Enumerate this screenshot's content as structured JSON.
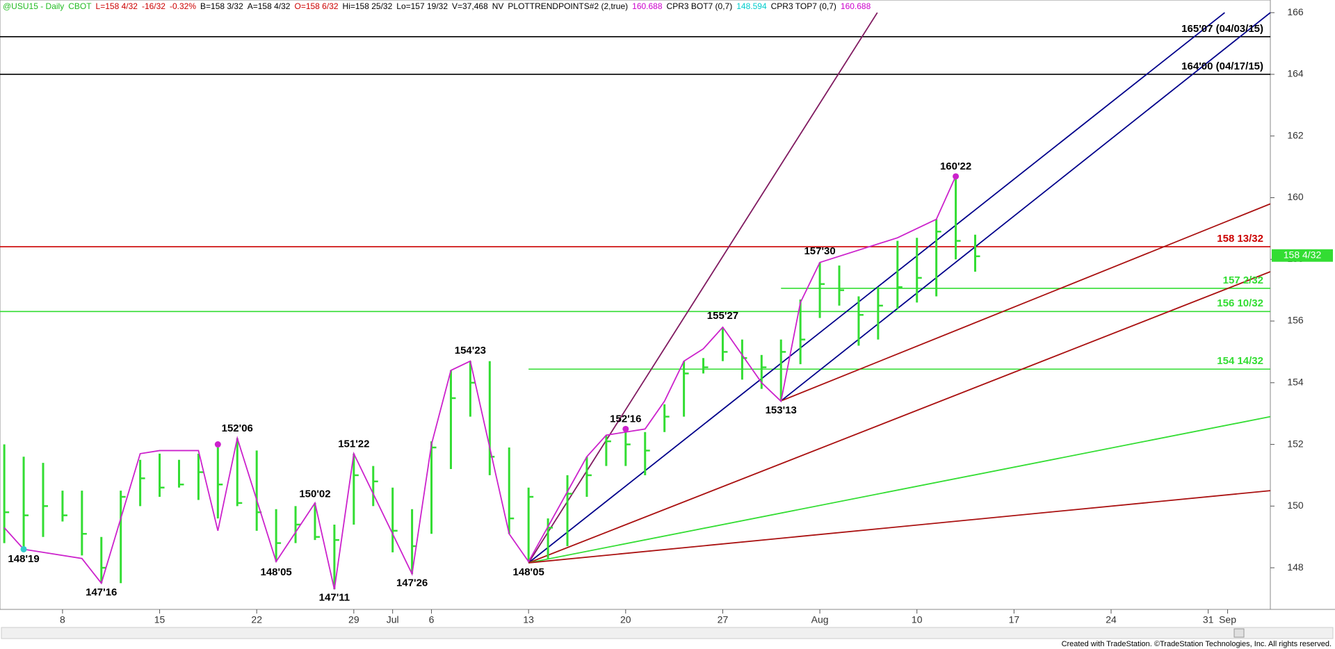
{
  "chart_data": {
    "type": "hlc_bar",
    "title_segments": [
      {
        "text": "@USU15 - Daily",
        "color": "#22bb22"
      },
      {
        "text": "CBOT",
        "color": "#22bb22"
      },
      {
        "text": "L=158 4/32",
        "color": "#cc0000"
      },
      {
        "text": "-16/32",
        "color": "#cc0000"
      },
      {
        "text": "-0.32%",
        "color": "#cc0000"
      },
      {
        "text": "B=158 3/32",
        "color": "#000000"
      },
      {
        "text": "A=158 4/32",
        "color": "#000000"
      },
      {
        "text": "O=158 6/32",
        "color": "#cc0000"
      },
      {
        "text": "Hi=158 25/32",
        "color": "#000000"
      },
      {
        "text": "Lo=157 19/32",
        "color": "#000000"
      },
      {
        "text": "V=37,468",
        "color": "#000000"
      },
      {
        "text": "NV",
        "color": "#000000"
      },
      {
        "text": "PLOTTRENDPOINTS#2 (2,true)",
        "color": "#000000"
      },
      {
        "text": "160.688",
        "color": "#cc00cc"
      },
      {
        "text": "CPR3 BOT7 (0,7)",
        "color": "#000000"
      },
      {
        "text": "148.594",
        "color": "#00cccc"
      },
      {
        "text": "CPR3 TOP7 (0,7)",
        "color": "#000000"
      },
      {
        "text": "160.688",
        "color": "#cc00cc"
      }
    ],
    "x": [
      0,
      1,
      2,
      3,
      4,
      5,
      6,
      7,
      8,
      9,
      10,
      11,
      12,
      13,
      14,
      15,
      16,
      17,
      18,
      19,
      20,
      21,
      22,
      23,
      24,
      25,
      26,
      27,
      28,
      29,
      30,
      31,
      32,
      33,
      34,
      35,
      36,
      37,
      38,
      39,
      40,
      41,
      42,
      43,
      44,
      45,
      46,
      47,
      48,
      49,
      50
    ],
    "high": [
      152.0,
      151.6,
      151.4,
      150.5,
      150.5,
      149.0,
      150.5,
      151.5,
      151.7,
      151.5,
      151.7,
      151.9,
      152.2,
      151.8,
      149.9,
      150.0,
      150.1,
      149.4,
      151.7,
      151.3,
      150.6,
      149.9,
      152.1,
      154.4,
      154.7,
      154.7,
      151.9,
      150.6,
      149.6,
      151.0,
      151.6,
      152.3,
      152.5,
      152.4,
      153.3,
      154.7,
      154.8,
      155.8,
      155.4,
      154.9,
      155.4,
      156.7,
      157.9,
      157.8,
      156.8,
      157.1,
      158.6,
      158.7,
      159.3,
      160.7,
      158.8
    ],
    "low": [
      148.8,
      148.6,
      149.0,
      149.5,
      148.4,
      147.5,
      147.5,
      150.0,
      150.3,
      150.6,
      150.2,
      149.6,
      150.0,
      149.2,
      148.2,
      148.8,
      148.9,
      147.3,
      149.4,
      150.0,
      148.5,
      147.8,
      149.1,
      151.2,
      152.9,
      151.0,
      149.1,
      148.2,
      148.3,
      148.7,
      150.3,
      151.3,
      151.3,
      151.0,
      152.4,
      152.9,
      154.3,
      154.7,
      154.1,
      153.8,
      153.4,
      154.6,
      156.1,
      156.5,
      155.2,
      155.4,
      156.4,
      156.6,
      156.8,
      158.0,
      157.6
    ],
    "close": [
      149.8,
      149.7,
      150.0,
      149.7,
      149.1,
      148.0,
      150.3,
      150.9,
      150.6,
      150.7,
      151.1,
      150.7,
      150.1,
      149.8,
      148.8,
      149.4,
      149.0,
      148.9,
      151.0,
      150.8,
      149.2,
      148.7,
      151.9,
      153.5,
      154.0,
      151.6,
      149.6,
      150.3,
      149.3,
      150.4,
      151.0,
      152.1,
      152.0,
      151.8,
      152.9,
      154.3,
      154.5,
      155.0,
      154.8,
      154.5,
      155.0,
      155.4,
      157.2,
      157.0,
      156.2,
      156.5,
      157.1,
      157.4,
      158.9,
      158.6,
      158.1
    ],
    "color": "#33dd33",
    "swing_line": {
      "color": "#cc22cc",
      "x": [
        0,
        1,
        4,
        5,
        7,
        8,
        10,
        11,
        12,
        14,
        16,
        17,
        18,
        21,
        22,
        23,
        24,
        26,
        27,
        30,
        31,
        33,
        34,
        35,
        36,
        37,
        39,
        40,
        41,
        42,
        46,
        48,
        49
      ],
      "y": [
        149.3,
        148.6,
        148.3,
        147.5,
        151.7,
        151.8,
        151.8,
        149.2,
        152.2,
        148.2,
        150.1,
        147.3,
        151.7,
        147.8,
        152.0,
        154.4,
        154.7,
        149.1,
        148.2,
        151.6,
        152.3,
        152.5,
        153.4,
        154.7,
        155.1,
        155.8,
        154.0,
        153.4,
        156.6,
        157.9,
        158.7,
        159.3,
        160.7
      ]
    },
    "swing_labels": [
      {
        "text": "148'19",
        "x": 1,
        "y": 148.59
      },
      {
        "text": "147'16",
        "x": 5,
        "y": 147.5
      },
      {
        "text": "152'06",
        "x": 12,
        "y": 152.19
      },
      {
        "text": "148'05",
        "x": 14,
        "y": 148.16
      },
      {
        "text": "150'02",
        "x": 16,
        "y": 150.06
      },
      {
        "text": "147'11",
        "x": 17,
        "y": 147.34
      },
      {
        "text": "151'22",
        "x": 18,
        "y": 151.69
      },
      {
        "text": "147'26",
        "x": 21,
        "y": 147.81
      },
      {
        "text": "154'23",
        "x": 24,
        "y": 154.72
      },
      {
        "text": "148'05",
        "x": 27,
        "y": 148.16
      },
      {
        "text": "152'16",
        "x": 32,
        "y": 152.5
      },
      {
        "text": "155'27",
        "x": 37,
        "y": 155.84
      },
      {
        "text": "153'13",
        "x": 40,
        "y": 153.41
      },
      {
        "text": "157'30",
        "x": 42,
        "y": 157.94
      },
      {
        "text": "160'22",
        "x": 49,
        "y": 160.69
      }
    ],
    "dots": [
      {
        "x": 1,
        "y": 148.6,
        "color": "#33cccc"
      },
      {
        "x": 11,
        "y": 152.0,
        "color": "#cc22cc"
      },
      {
        "x": 32,
        "y": 152.5,
        "color": "#cc22cc"
      },
      {
        "x": 49,
        "y": 160.69,
        "color": "#cc22cc"
      }
    ],
    "levels": [
      {
        "value": 165.22,
        "label": "165'07 (04/03/15)",
        "color": "#000000",
        "from": -0.22
      },
      {
        "value": 164.0,
        "label": "164'00 (04/17/15)",
        "color": "#000000",
        "from": -0.22
      },
      {
        "value": 158.41,
        "label": "158 13/32",
        "color": "#cc0000",
        "from": -0.22
      },
      {
        "value": 157.06,
        "label": "157 2/32",
        "color": "#33dd33",
        "from": 40
      },
      {
        "value": 156.31,
        "label": "156 10/32",
        "color": "#33dd33",
        "from": -0.22
      },
      {
        "value": 154.44,
        "label": "154 14/32",
        "color": "#33dd33",
        "from": 27
      }
    ],
    "trendlines": [
      {
        "color": "#801a60",
        "x": [
          27,
          44.96
        ],
        "y": [
          148.16,
          166
        ]
      },
      {
        "color": "#00008b",
        "x": [
          27,
          62.85
        ],
        "y": [
          148.16,
          166
        ]
      },
      {
        "color": "#00008b",
        "x": [
          40,
          65.2
        ],
        "y": [
          153.41,
          166
        ]
      },
      {
        "color": "#aa1111",
        "x": [
          40,
          65.2
        ],
        "y": [
          153.41,
          159.8
        ]
      },
      {
        "color": "#aa1111",
        "x": [
          27,
          65.2
        ],
        "y": [
          148.16,
          157.6
        ]
      },
      {
        "color": "#33dd33",
        "x": [
          27,
          65.2
        ],
        "y": [
          148.16,
          152.9
        ]
      },
      {
        "color": "#aa1111",
        "x": [
          27,
          65.2
        ],
        "y": [
          148.16,
          150.5
        ]
      }
    ],
    "last_price": {
      "value": 158.125,
      "label": "158 4/32",
      "color": "#33dd33"
    },
    "xlim": [
      -0.22,
      65.2
    ],
    "ylim": [
      146.65,
      166.41
    ],
    "yticks": [
      148,
      150,
      152,
      154,
      156,
      158,
      160,
      162,
      164,
      166
    ],
    "xticks": [
      {
        "value": 3,
        "label": "8"
      },
      {
        "value": 8,
        "label": "15"
      },
      {
        "value": 13,
        "label": "22"
      },
      {
        "value": 18,
        "label": "29"
      },
      {
        "value": 20,
        "label": "Jul"
      },
      {
        "value": 22,
        "label": "6"
      },
      {
        "value": 27,
        "label": "13"
      },
      {
        "value": 32,
        "label": "20"
      },
      {
        "value": 37,
        "label": "27"
      },
      {
        "value": 42,
        "label": "Aug"
      },
      {
        "value": 47,
        "label": "10"
      },
      {
        "value": 52,
        "label": "17"
      },
      {
        "value": 57,
        "label": "24"
      },
      {
        "value": 62,
        "label": "31"
      },
      {
        "value": 63,
        "label": "Sep"
      }
    ],
    "footer": "Created with TradeStation. ©TradeStation Technologies, Inc. All rights reserved."
  }
}
